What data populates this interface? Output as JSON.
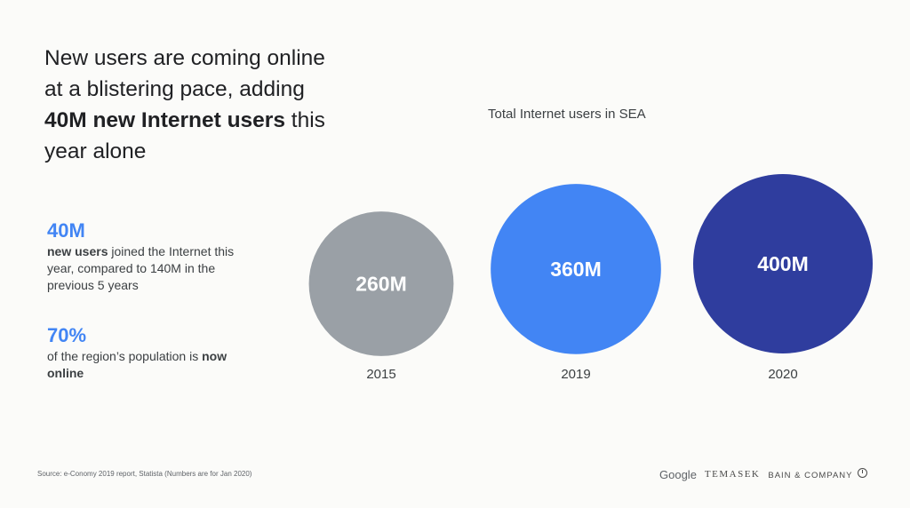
{
  "headline": {
    "part1": "New users are coming online at a blistering pace, adding ",
    "bold1": "40M new Internet users",
    "part2": " this year alone"
  },
  "stats": [
    {
      "value": "40M",
      "desc_bold": "new users",
      "desc_rest": " joined the Internet this year, compared to 140M in the previous 5 years"
    },
    {
      "value": "70%",
      "desc_pre": "of the region’s population is ",
      "desc_bold": "now online"
    }
  ],
  "footer": {
    "source": "Source: e-Conomy 2019 report, Statista (Numbers are for Jan 2020)",
    "logos": [
      "Google",
      "TEMASEK",
      "BAIN & COMPANY"
    ]
  },
  "colors": {
    "accent": "#4285f4",
    "bubble_2015": "#9aa0a6",
    "bubble_2019": "#4285f4",
    "bubble_2020": "#2f3d9e"
  },
  "chart_data": {
    "type": "bubble",
    "title": "Total Internet users in SEA",
    "categories": [
      "2015",
      "2019",
      "2020"
    ],
    "values": [
      260,
      360,
      400
    ],
    "data_labels": [
      "260M",
      "360M",
      "400M"
    ],
    "unit": "M",
    "colors": [
      "#9aa0a6",
      "#4285f4",
      "#2f3d9e"
    ]
  }
}
